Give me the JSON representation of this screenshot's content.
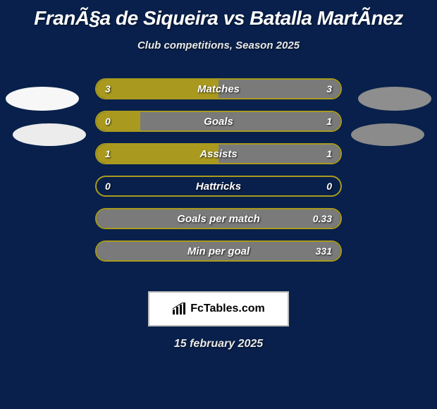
{
  "title": "FranÃ§a de Siqueira vs Batalla MartÃ­nez",
  "subtitle": "Club competitions, Season 2025",
  "colors": {
    "background": "#08204b",
    "left_accent": "#a99a1f",
    "right_accent": "#7a7a7a",
    "ellipse_left_1": "#f7f7f7",
    "ellipse_left_2": "#ececec",
    "ellipse_right_1": "#8e8e8e",
    "ellipse_right_2": "#8b8b8b",
    "text": "#ffffff"
  },
  "rows": [
    {
      "label": "Matches",
      "left_val": "3",
      "right_val": "3",
      "left_pct": 50,
      "right_pct": 50
    },
    {
      "label": "Goals",
      "left_val": "0",
      "right_val": "1",
      "left_pct": 18,
      "right_pct": 82
    },
    {
      "label": "Assists",
      "left_val": "1",
      "right_val": "1",
      "left_pct": 50,
      "right_pct": 50
    },
    {
      "label": "Hattricks",
      "left_val": "0",
      "right_val": "0",
      "left_pct": 0,
      "right_pct": 0
    },
    {
      "label": "Goals per match",
      "left_val": "",
      "right_val": "0.33",
      "left_pct": 0,
      "right_pct": 100
    },
    {
      "label": "Min per goal",
      "left_val": "",
      "right_val": "331",
      "left_pct": 0,
      "right_pct": 100
    }
  ],
  "badge_text": "FcTables.com",
  "footer_date": "15 february 2025"
}
